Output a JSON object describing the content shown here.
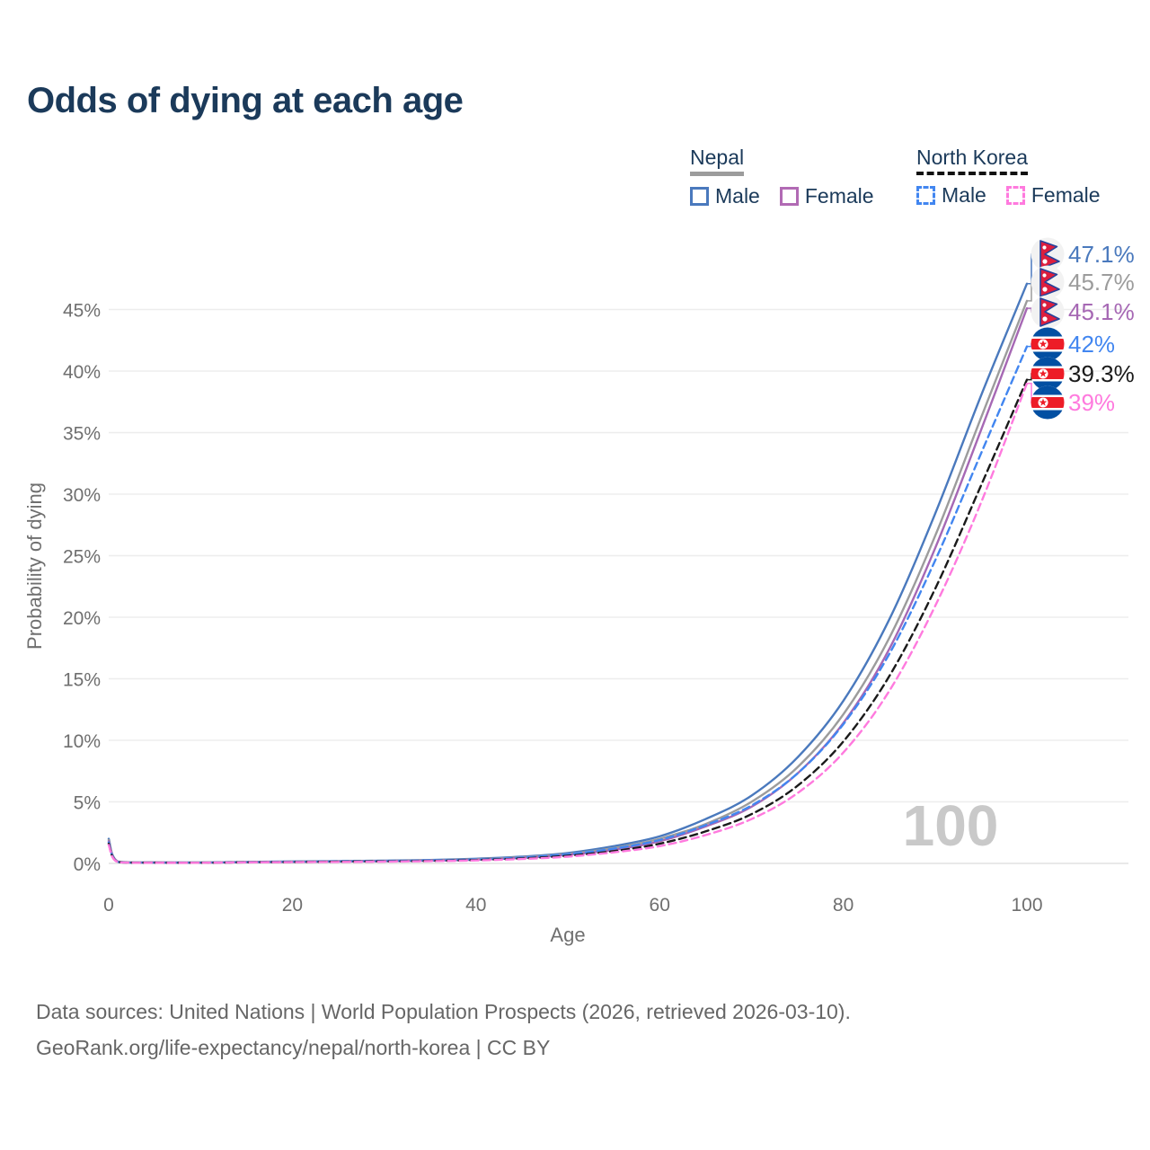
{
  "title": "Odds of dying at each age",
  "legend": {
    "groups": [
      {
        "label": "Nepal",
        "line_style": "solid",
        "line_color": "#9c9c9c",
        "items": [
          {
            "label": "Male",
            "color": "#4a79bd",
            "style": "solid"
          },
          {
            "label": "Female",
            "color": "#b16ab4",
            "style": "solid"
          }
        ]
      },
      {
        "label": "North Korea",
        "line_style": "dashed",
        "line_color": "#111111",
        "items": [
          {
            "label": "Male",
            "color": "#4286f0",
            "style": "dashed"
          },
          {
            "label": "Female",
            "color": "#ff7ade",
            "style": "dashed"
          }
        ]
      }
    ]
  },
  "footer": {
    "line1": "Data sources: United Nations | World Population Prospects (2026, retrieved 2026-03-10).",
    "line2": "GeoRank.org/life-expectancy/nepal/north-korea | CC BY"
  },
  "chart_data": {
    "type": "line",
    "title": "Odds of dying at each age",
    "xlabel": "Age",
    "ylabel": "Probability of dying",
    "xlim": [
      0,
      100
    ],
    "ylim_percent": [
      0,
      47.5
    ],
    "x_ticks": [
      0,
      20,
      40,
      60,
      80,
      100
    ],
    "y_ticks": [
      "0%",
      "5%",
      "10%",
      "15%",
      "20%",
      "25%",
      "30%",
      "35%",
      "40%",
      "45%"
    ],
    "y_tick_values": [
      0,
      5,
      10,
      15,
      20,
      25,
      30,
      35,
      40,
      45
    ],
    "grid": "horizontal",
    "legend_position": "top-right",
    "watermark": "100",
    "ages": [
      0,
      1,
      5,
      10,
      15,
      20,
      25,
      30,
      35,
      40,
      45,
      50,
      55,
      60,
      65,
      70,
      75,
      80,
      85,
      90,
      95,
      100
    ],
    "series": [
      {
        "id": "nepal-male",
        "name": "Nepal — Male",
        "country": "Nepal",
        "sex": "Male",
        "style": "solid",
        "color": "#4a79bd",
        "flag": "nepal",
        "end_label": "47.1%",
        "end_value": 47.1,
        "values": [
          2.0,
          0.15,
          0.08,
          0.08,
          0.12,
          0.16,
          0.19,
          0.22,
          0.28,
          0.38,
          0.55,
          0.85,
          1.4,
          2.2,
          3.6,
          5.5,
          8.6,
          13.2,
          19.8,
          28.4,
          38.0,
          47.1
        ]
      },
      {
        "id": "nepal-overall",
        "name": "Nepal — Both sexes",
        "country": "Nepal",
        "sex": "Both",
        "style": "solid",
        "color": "#9c9c9c",
        "flag": "nepal",
        "end_label": "45.7%",
        "end_value": 45.7,
        "values": [
          1.9,
          0.14,
          0.07,
          0.07,
          0.11,
          0.14,
          0.17,
          0.2,
          0.25,
          0.34,
          0.5,
          0.77,
          1.25,
          2.0,
          3.2,
          5.0,
          7.8,
          12.1,
          18.3,
          26.6,
          36.2,
          45.7
        ]
      },
      {
        "id": "nepal-female",
        "name": "Nepal — Female",
        "country": "Nepal",
        "sex": "Female",
        "style": "solid",
        "color": "#a668b4",
        "flag": "nepal",
        "end_label": "45.1%",
        "end_value": 45.1,
        "values": [
          1.8,
          0.13,
          0.07,
          0.06,
          0.1,
          0.12,
          0.15,
          0.18,
          0.22,
          0.3,
          0.45,
          0.7,
          1.1,
          1.8,
          3.0,
          4.6,
          7.3,
          11.4,
          17.4,
          25.6,
          35.2,
          45.1
        ]
      },
      {
        "id": "north-korea-male",
        "name": "North Korea — Male",
        "country": "North Korea",
        "sex": "Male",
        "style": "dashed",
        "color": "#4286f0",
        "flag": "north-korea",
        "end_label": "42%",
        "end_value": 42.0,
        "values": [
          1.7,
          0.12,
          0.06,
          0.06,
          0.1,
          0.13,
          0.16,
          0.19,
          0.24,
          0.32,
          0.48,
          0.75,
          1.2,
          1.9,
          3.1,
          4.7,
          7.3,
          11.3,
          17.0,
          24.6,
          33.3,
          42.0
        ]
      },
      {
        "id": "north-korea-overall",
        "name": "North Korea — Both sexes",
        "country": "North Korea",
        "sex": "Both",
        "style": "dashed",
        "color": "#1a1a1a",
        "flag": "north-korea",
        "end_label": "39.3%",
        "end_value": 39.3,
        "values": [
          1.6,
          0.11,
          0.06,
          0.05,
          0.09,
          0.11,
          0.14,
          0.16,
          0.2,
          0.27,
          0.4,
          0.62,
          1.0,
          1.6,
          2.6,
          4.0,
          6.3,
          9.9,
          15.2,
          22.3,
          30.7,
          39.3
        ]
      },
      {
        "id": "north-korea-female",
        "name": "North Korea — Female",
        "country": "North Korea",
        "sex": "Female",
        "style": "dashed",
        "color": "#ff7ade",
        "flag": "north-korea",
        "end_label": "39%",
        "end_value": 39.0,
        "values": [
          1.5,
          0.1,
          0.05,
          0.05,
          0.08,
          0.1,
          0.12,
          0.14,
          0.18,
          0.24,
          0.36,
          0.55,
          0.9,
          1.4,
          2.3,
          3.6,
          5.7,
          9.0,
          14.0,
          20.9,
          29.3,
          39.0
        ]
      }
    ]
  }
}
